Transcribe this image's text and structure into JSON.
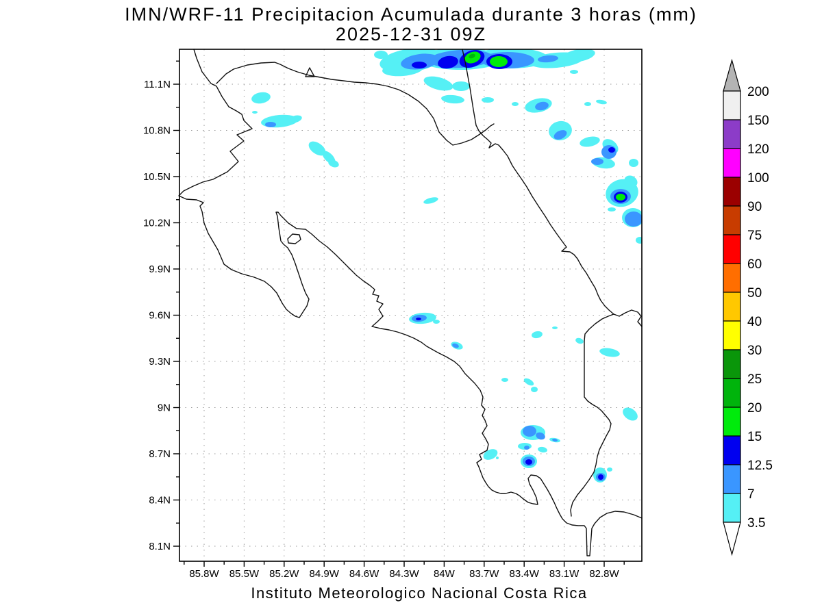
{
  "title": "IMN/WRF-11 Precipitacion Acumulada durante 3 horas (mm)",
  "subtitle": "2025-12-31 09Z",
  "footer": "Instituto Meteorologico Nacional Costa Rica",
  "axes": {
    "lat_labels": [
      "11.1N",
      "10.8N",
      "10.5N",
      "10.2N",
      "9.9N",
      "9.6N",
      "9.3N",
      "9N",
      "8.7N",
      "8.4N",
      "8.1N"
    ],
    "lon_labels": [
      "85.8W",
      "85.5W",
      "85.2W",
      "84.9W",
      "84.6W",
      "84.3W",
      "84W",
      "83.7W",
      "83.4W",
      "83.1W",
      "82.8W"
    ]
  },
  "colorbar": {
    "boundary_labels": [
      "200",
      "150",
      "120",
      "100",
      "90",
      "75",
      "60",
      "50",
      "40",
      "30",
      "25",
      "20",
      "15",
      "12.5",
      "7",
      "3.5"
    ],
    "band_colors_top_to_bottom": [
      "#f0f0f0",
      "#8c3cc8",
      "#ff00ff",
      "#9b0000",
      "#c83c00",
      "#ff0000",
      "#ff6e00",
      "#ffc800",
      "#ffff00",
      "#0a960a",
      "#00b40c",
      "#00eb0c",
      "#0000f0",
      "#3a96ff",
      "#55f0f5"
    ],
    "arrow_top_color": "#b4b4b4",
    "arrow_bottom_color": "#ffffff"
  },
  "palette": {
    "3.5": "#55f0f5",
    "7": "#3a96ff",
    "12.5": "#0000f0",
    "15": "#00eb0c",
    "20": "#00b40c"
  },
  "precip_patches": [
    {
      "level": "3.5",
      "e": [
        556,
        80,
        10,
        6,
        0
      ]
    },
    {
      "level": "3.5",
      "e": [
        600,
        88,
        46,
        17,
        -8
      ]
    },
    {
      "level": "3.5",
      "e": [
        672,
        86,
        60,
        16,
        0
      ]
    },
    {
      "level": "3.5",
      "e": [
        745,
        85,
        55,
        15,
        0
      ]
    },
    {
      "level": "3.5",
      "e": [
        812,
        88,
        40,
        11,
        -5
      ]
    },
    {
      "level": "3.5",
      "e": [
        845,
        81,
        24,
        9,
        -10
      ]
    },
    {
      "level": "3.5",
      "e": [
        588,
        101,
        30,
        10,
        -5
      ]
    },
    {
      "level": "3.5",
      "e": [
        640,
        122,
        22,
        9,
        15
      ]
    },
    {
      "level": "3.5",
      "e": [
        673,
        126,
        13,
        7,
        0
      ]
    },
    {
      "level": "3.5",
      "e": [
        661,
        145,
        17,
        6,
        5
      ]
    },
    {
      "level": "3.5",
      "e": [
        712,
        146,
        9,
        4,
        0
      ]
    },
    {
      "level": "3.5",
      "e": [
        752,
        152,
        5,
        3,
        0
      ]
    },
    {
      "level": "3.5",
      "e": [
        838,
        105,
        6,
        3,
        0
      ]
    },
    {
      "level": "3.5",
      "e": [
        381,
        143,
        14,
        8,
        -10
      ]
    },
    {
      "level": "3.5",
      "e": [
        372,
        164,
        4,
        2,
        0
      ]
    },
    {
      "level": "3.5",
      "e": [
        408,
        177,
        27,
        9,
        -5
      ]
    },
    {
      "level": "3.5",
      "e": [
        431,
        174,
        10,
        5,
        -15
      ]
    },
    {
      "level": "3.5",
      "e": [
        463,
        217,
        14,
        8,
        35
      ]
    },
    {
      "level": "3.5",
      "e": [
        480,
        230,
        12,
        6,
        45
      ]
    },
    {
      "level": "3.5",
      "e": [
        487,
        239,
        8,
        5,
        20
      ]
    },
    {
      "level": "3.5",
      "e": [
        629,
        293,
        11,
        4,
        -15
      ]
    },
    {
      "level": "3.5",
      "e": [
        786,
        154,
        20,
        10,
        -12
      ]
    },
    {
      "level": "3.5",
      "e": [
        858,
        152,
        5,
        3,
        0
      ]
    },
    {
      "level": "3.5",
      "e": [
        878,
        149,
        8,
        3,
        10
      ]
    },
    {
      "level": "3.5",
      "e": [
        818,
        191,
        17,
        14,
        -10
      ]
    },
    {
      "level": "3.5",
      "e": [
        861,
        207,
        15,
        7,
        -12
      ]
    },
    {
      "level": "3.5",
      "e": [
        891,
        214,
        13,
        9,
        40
      ]
    },
    {
      "level": "3.5",
      "e": [
        881,
        238,
        17,
        8,
        8
      ]
    },
    {
      "level": "3.5",
      "e": [
        925,
        238,
        7,
        6,
        0
      ]
    },
    {
      "level": "3.5",
      "e": [
        908,
        282,
        24,
        20,
        -15
      ]
    },
    {
      "level": "3.5",
      "e": [
        921,
        265,
        10,
        8,
        30
      ]
    },
    {
      "level": "3.5",
      "e": [
        924,
        318,
        16,
        14,
        0
      ]
    },
    {
      "level": "3.5",
      "e": [
        893,
        306,
        6,
        3,
        0
      ]
    },
    {
      "level": "3.5",
      "e": [
        934,
        351,
        6,
        5,
        0
      ]
    },
    {
      "level": "3.5",
      "e": [
        617,
        465,
        20,
        8,
        -5
      ]
    },
    {
      "level": "3.5",
      "e": [
        637,
        470,
        5,
        3,
        0
      ]
    },
    {
      "level": "3.5",
      "e": [
        667,
        505,
        9,
        5,
        20
      ]
    },
    {
      "level": "3.5",
      "e": [
        784,
        489,
        8,
        5,
        -10
      ]
    },
    {
      "level": "3.5",
      "e": [
        810,
        479,
        4,
        2,
        0
      ]
    },
    {
      "level": "3.5",
      "e": [
        846,
        498,
        6,
        4,
        20
      ]
    },
    {
      "level": "3.5",
      "e": [
        890,
        515,
        15,
        6,
        10
      ]
    },
    {
      "level": "3.5",
      "e": [
        737,
        555,
        5,
        3,
        0
      ]
    },
    {
      "level": "3.5",
      "e": [
        772,
        558,
        8,
        4,
        30
      ]
    },
    {
      "level": "3.5",
      "e": [
        780,
        569,
        5,
        4,
        0
      ]
    },
    {
      "level": "3.5",
      "e": [
        920,
        605,
        12,
        8,
        35
      ]
    },
    {
      "level": "3.5",
      "e": [
        778,
        632,
        18,
        11,
        0
      ]
    },
    {
      "level": "3.5",
      "e": [
        810,
        643,
        8,
        3,
        10
      ]
    },
    {
      "level": "3.5",
      "e": [
        766,
        652,
        10,
        5,
        0
      ]
    },
    {
      "level": "3.5",
      "e": [
        792,
        657,
        7,
        4,
        10
      ]
    },
    {
      "level": "3.5",
      "e": [
        716,
        664,
        11,
        7,
        -25
      ]
    },
    {
      "level": "3.5",
      "e": [
        726,
        669,
        2,
        2,
        0
      ]
    },
    {
      "level": "3.5",
      "e": [
        772,
        674,
        12,
        10,
        0
      ]
    },
    {
      "level": "3.5",
      "e": [
        876,
        694,
        10,
        11,
        0
      ]
    },
    {
      "level": "3.5",
      "e": [
        890,
        686,
        4,
        3,
        0
      ]
    },
    {
      "level": "7",
      "e": [
        613,
        90,
        28,
        11,
        -8
      ]
    },
    {
      "level": "7",
      "e": [
        673,
        86,
        47,
        13,
        -3
      ]
    },
    {
      "level": "7",
      "e": [
        741,
        88,
        39,
        12,
        0
      ]
    },
    {
      "level": "7",
      "e": [
        800,
        86,
        15,
        5,
        -5
      ]
    },
    {
      "level": "7",
      "e": [
        395,
        182,
        8,
        4,
        0
      ]
    },
    {
      "level": "7",
      "e": [
        791,
        155,
        10,
        6,
        -12
      ]
    },
    {
      "level": "7",
      "e": [
        818,
        197,
        10,
        6,
        -25
      ]
    },
    {
      "level": "7",
      "e": [
        889,
        222,
        11,
        10,
        0
      ]
    },
    {
      "level": "7",
      "e": [
        872,
        236,
        9,
        5,
        0
      ]
    },
    {
      "level": "7",
      "e": [
        906,
        287,
        15,
        11,
        0
      ]
    },
    {
      "level": "7",
      "e": [
        925,
        320,
        13,
        11,
        0
      ]
    },
    {
      "level": "7",
      "e": [
        612,
        465,
        11,
        5,
        -5
      ]
    },
    {
      "level": "7",
      "e": [
        665,
        505,
        5,
        3,
        20
      ]
    },
    {
      "level": "7",
      "e": [
        773,
        630,
        10,
        8,
        0
      ]
    },
    {
      "level": "7",
      "e": [
        789,
        637,
        7,
        5,
        20
      ]
    },
    {
      "level": "7",
      "e": [
        810,
        643,
        4,
        2,
        10
      ]
    },
    {
      "level": "7",
      "e": [
        769,
        654,
        4,
        3,
        0
      ]
    },
    {
      "level": "7",
      "e": [
        772,
        674,
        9,
        7,
        0
      ]
    },
    {
      "level": "7",
      "e": [
        877,
        697,
        7,
        6,
        0
      ]
    },
    {
      "level": "12.5",
      "e": [
        612,
        95,
        11,
        5,
        0
      ]
    },
    {
      "level": "12.5",
      "e": [
        654,
        91,
        15,
        9,
        -10
      ]
    },
    {
      "level": "12.5",
      "e": [
        689,
        86,
        19,
        12,
        -20
      ]
    },
    {
      "level": "12.5",
      "e": [
        729,
        90,
        19,
        11,
        0
      ]
    },
    {
      "level": "12.5",
      "e": [
        893,
        219,
        5,
        4,
        0
      ]
    },
    {
      "level": "12.5",
      "e": [
        906,
        288,
        10,
        8,
        0
      ]
    },
    {
      "level": "12.5",
      "e": [
        611,
        466,
        4,
        2,
        0
      ]
    },
    {
      "level": "12.5",
      "e": [
        772,
        675,
        5,
        4,
        0
      ]
    },
    {
      "level": "12.5",
      "e": [
        877,
        697,
        4,
        4,
        0
      ]
    },
    {
      "level": "15",
      "e": [
        690,
        84,
        12,
        8,
        -20
      ]
    },
    {
      "level": "15",
      "e": [
        728,
        90,
        13,
        8,
        0
      ]
    },
    {
      "level": "15",
      "e": [
        906,
        288,
        7,
        5,
        0
      ]
    },
    {
      "level": "20",
      "e": [
        689,
        82,
        5,
        3,
        -20
      ]
    }
  ]
}
